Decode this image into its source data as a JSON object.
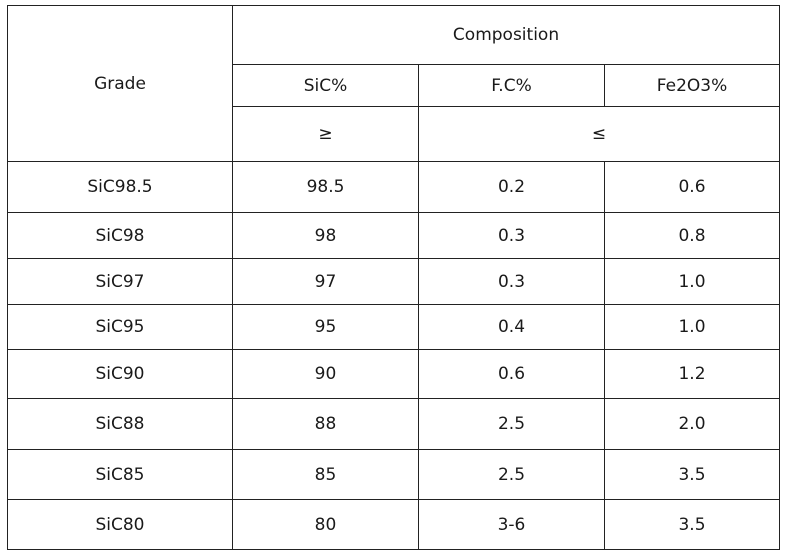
{
  "table": {
    "header": {
      "grade": "Grade",
      "composition": "Composition",
      "columns": [
        "SiC%",
        "F.C%",
        "Fe2O3%"
      ],
      "limits": [
        "≥",
        "≤"
      ]
    },
    "rows": [
      [
        "SiC98.5",
        "98.5",
        "0.2",
        "0.6"
      ],
      [
        "SiC98",
        "98",
        "0.3",
        "0.8"
      ],
      [
        "SiC97",
        "97",
        "0.3",
        "1.0"
      ],
      [
        "SiC95",
        "95",
        "0.4",
        "1.0"
      ],
      [
        "SiC90",
        "90",
        "0.6",
        "1.2"
      ],
      [
        "SiC88",
        "88",
        "2.5",
        "2.0"
      ],
      [
        "SiC85",
        "85",
        "2.5",
        "3.5"
      ],
      [
        "SiC80",
        "80",
        "3-6",
        "3.5"
      ]
    ]
  }
}
